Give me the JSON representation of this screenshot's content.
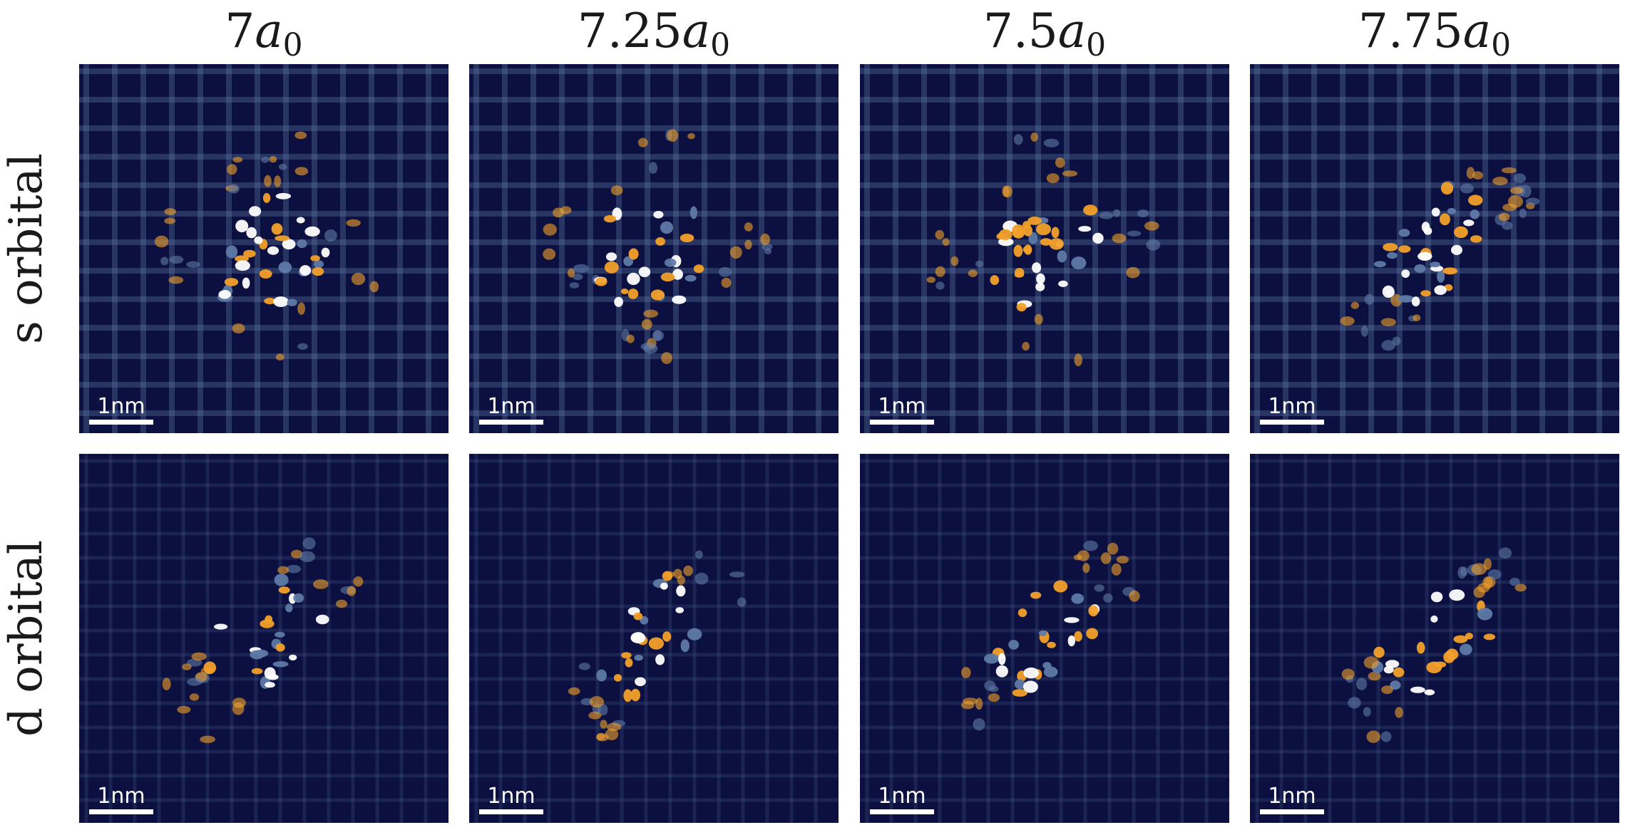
{
  "columns": [
    {
      "num": "7",
      "var": "a",
      "sub": "0"
    },
    {
      "num": "7.25",
      "var": "a",
      "sub": "0"
    },
    {
      "num": "7.5",
      "var": "a",
      "sub": "0"
    },
    {
      "num": "7.75",
      "var": "a",
      "sub": "0"
    }
  ],
  "rows": [
    {
      "label": "s orbital"
    },
    {
      "label": "d orbital"
    }
  ],
  "scale_bar": {
    "label": "1nm"
  },
  "colors": {
    "background": "#0b1040",
    "mid": "#5f7aa6",
    "orange": "#f2a02a",
    "peak": "#ffffff"
  }
}
